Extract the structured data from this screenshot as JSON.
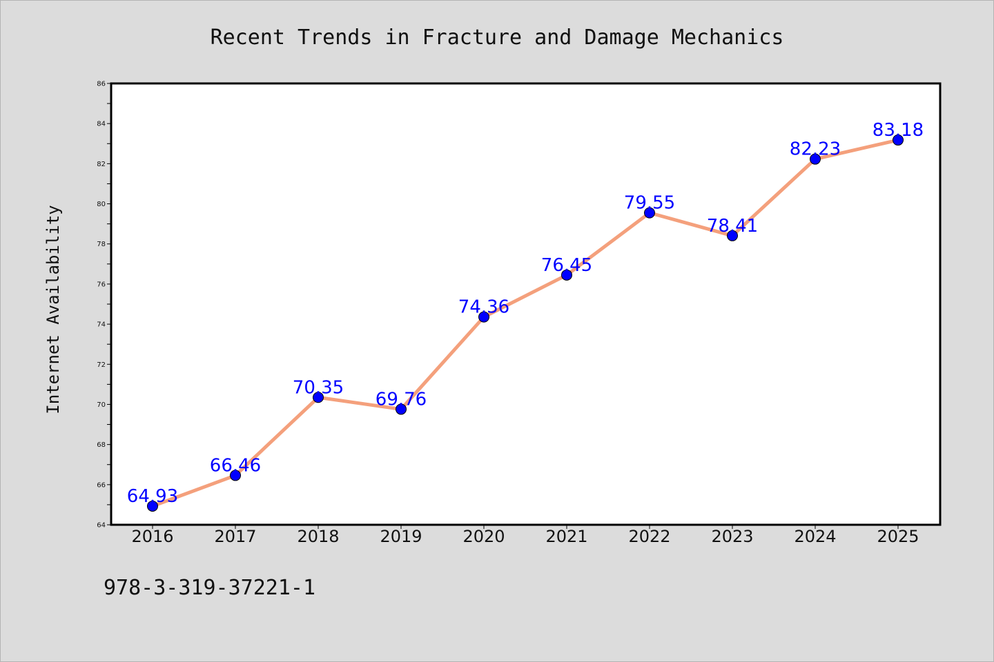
{
  "colors": {
    "background": "#dcdcdc",
    "plot_background": "#ffffff",
    "line": "#f4a07c",
    "marker": "#0000ff",
    "data_label": "#0000ff",
    "axis": "#000000"
  },
  "chart_data": {
    "type": "line",
    "title": "Recent Trends in Fracture and Damage Mechanics",
    "xlabel": "",
    "ylabel": "Internet Availability",
    "categories": [
      "2016",
      "2017",
      "2018",
      "2019",
      "2020",
      "2021",
      "2022",
      "2023",
      "2024",
      "2025"
    ],
    "series": [
      {
        "values": [
          64.93,
          66.46,
          70.35,
          69.76,
          74.36,
          76.45,
          79.55,
          78.41,
          82.23,
          83.18
        ],
        "data_labels": [
          "64.93",
          "66.46",
          "70.35",
          "69.76",
          "74.36",
          "76.45",
          "79.55",
          "78.41",
          "82.23",
          "83.18"
        ]
      }
    ],
    "ylim": [
      64,
      86
    ],
    "yticks": [
      64,
      66,
      68,
      70,
      72,
      74,
      76,
      78,
      80,
      82,
      84,
      86
    ],
    "ytick_labels": [
      "64",
      "66",
      "68",
      "70",
      "72",
      "74",
      "76",
      "78",
      "80",
      "82",
      "84",
      "86"
    ],
    "grid": false,
    "legend": "none"
  },
  "footer": {
    "identifier": "978-3-319-37221-1"
  }
}
